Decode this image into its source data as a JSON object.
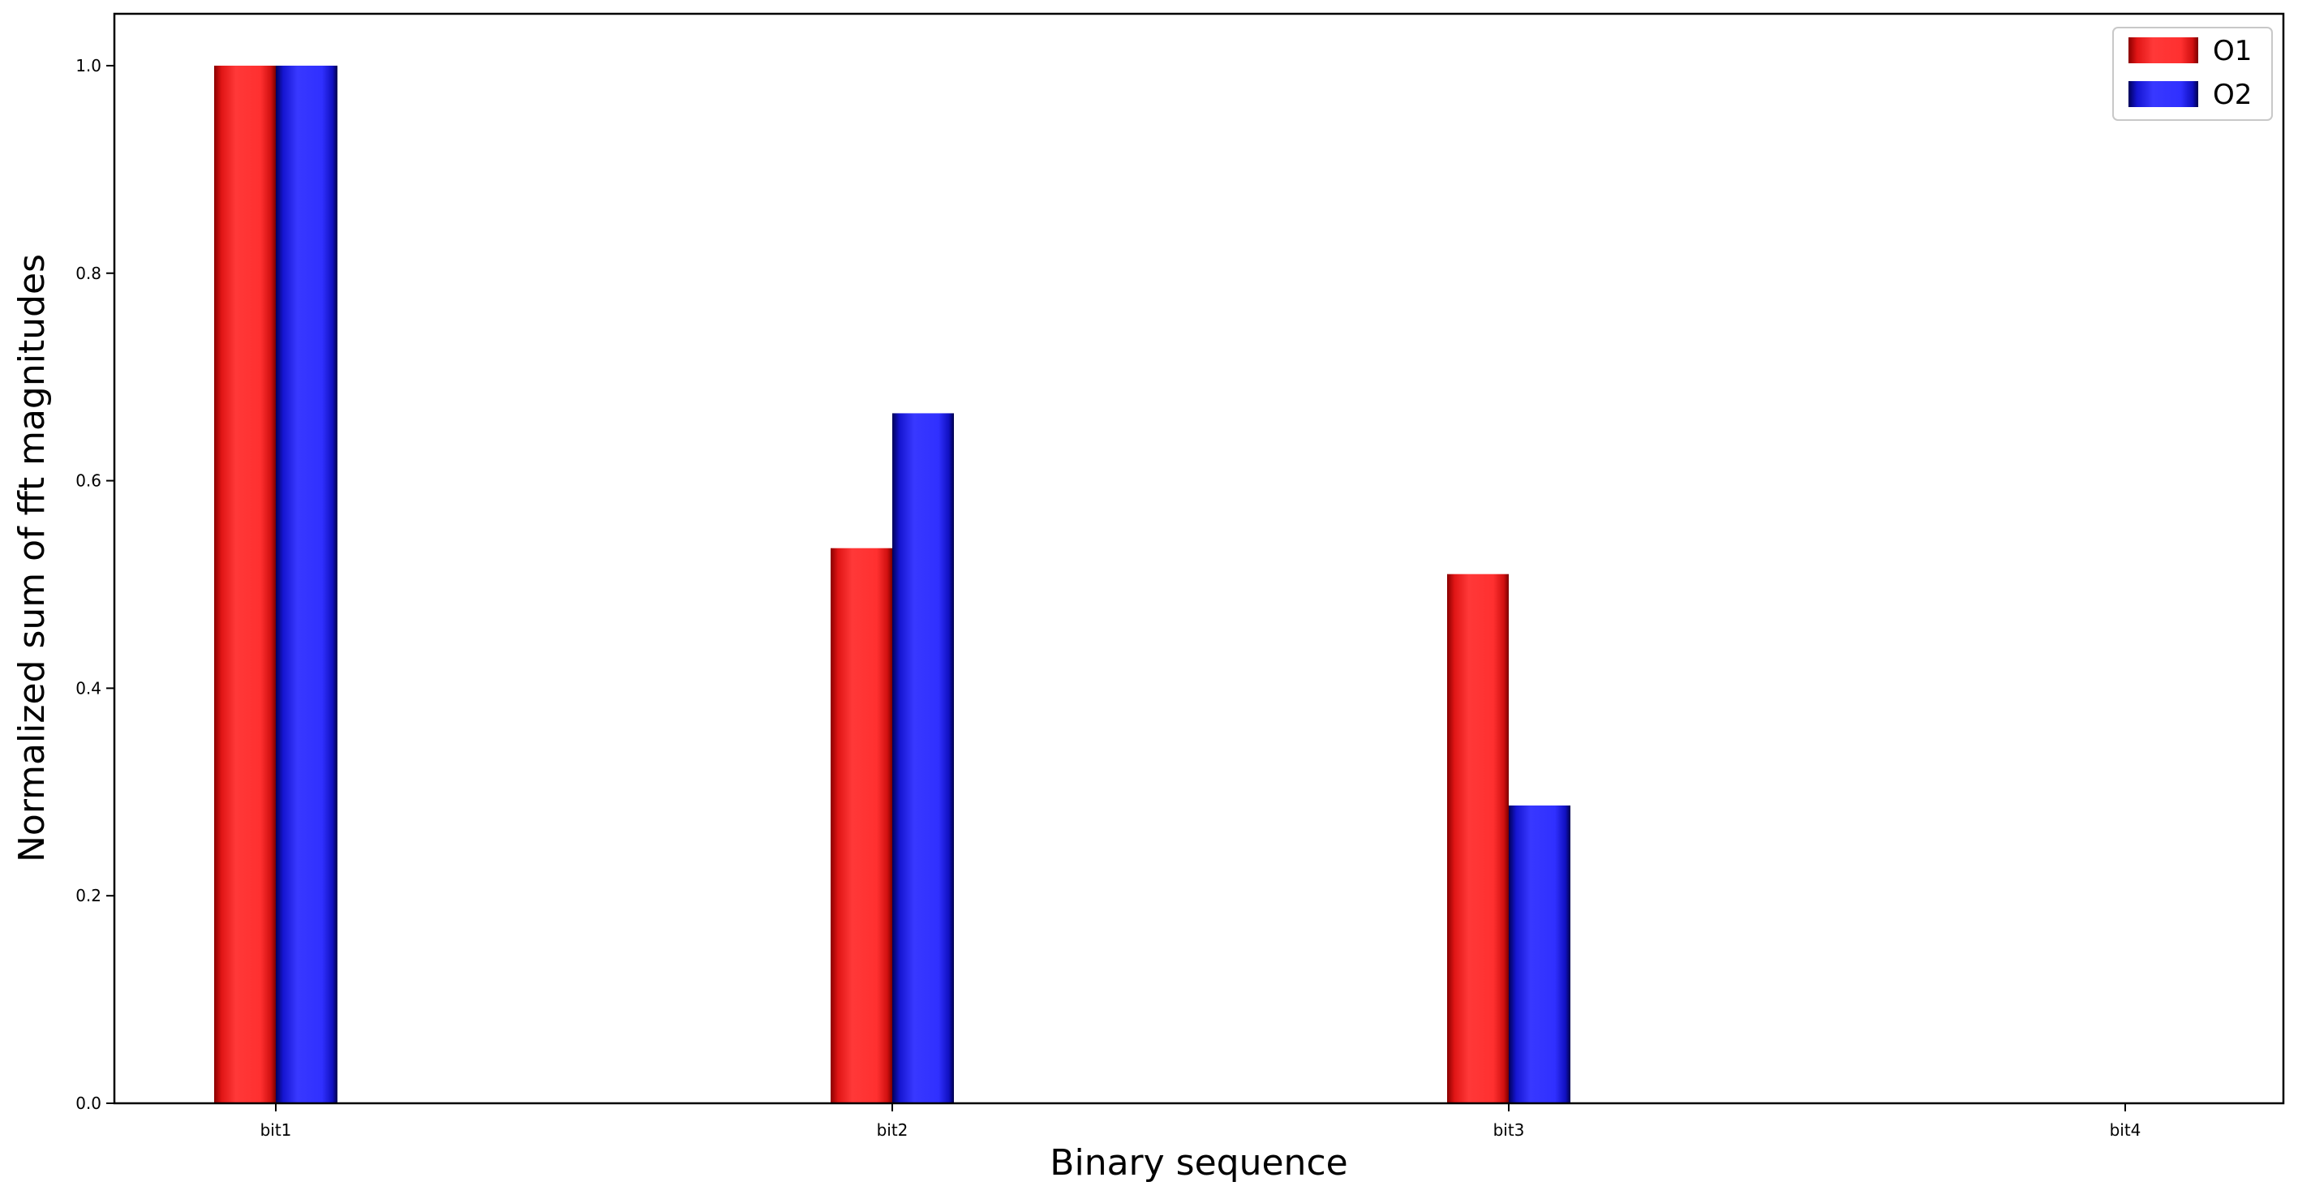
{
  "chart_data": {
    "type": "bar",
    "categories": [
      "bit1",
      "bit2",
      "bit3",
      "bit4"
    ],
    "series": [
      {
        "name": "O1",
        "values": [
          1.0,
          0.535,
          0.51,
          0.0
        ],
        "color": "#ff2a2a"
      },
      {
        "name": "O2",
        "values": [
          1.0,
          0.665,
          0.287,
          0.0
        ],
        "color": "#2a2aff"
      }
    ],
    "xlabel": "Binary sequence",
    "ylabel": "Normalized sum of fft magnitudes",
    "ylim": [
      0,
      1.05
    ],
    "yticks": [
      0.0,
      0.2,
      0.4,
      0.6,
      0.8,
      1.0
    ],
    "grid": false,
    "legend_position": "top-right"
  }
}
